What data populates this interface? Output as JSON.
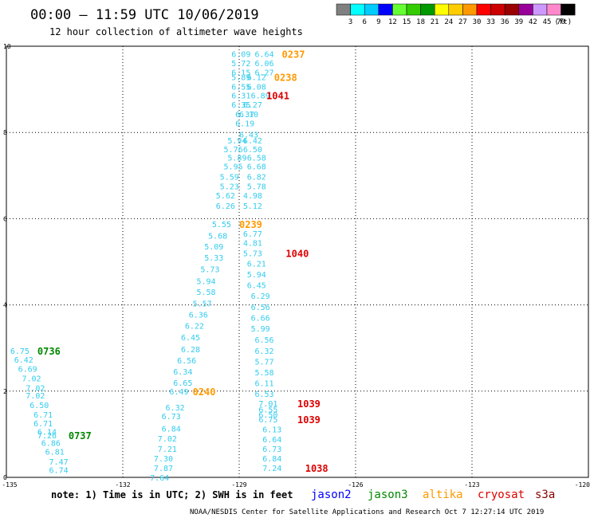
{
  "header": {
    "title": "00:00 – 11:59 UTC 10/06/2019",
    "subtitle": "12 hour collection of altimeter wave heights"
  },
  "color_scale": {
    "labels": [
      "3",
      "6",
      "9",
      "12",
      "15",
      "18",
      "21",
      "24",
      "27",
      "30",
      "33",
      "36",
      "39",
      "42",
      "45",
      "70"
    ],
    "unit": "(ft)",
    "colors": [
      "#808080",
      "#00ffff",
      "#00ccff",
      "#0000ff",
      "#66ff33",
      "#33cc00",
      "#009900",
      "#ffff00",
      "#ffcc00",
      "#ff9900",
      "#ff0000",
      "#cc0000",
      "#990000",
      "#990099",
      "#cc99ff",
      "#ff88cc",
      "#000000"
    ]
  },
  "legend": {
    "satellites": [
      {
        "name": "jason2",
        "color": "#0000ff"
      },
      {
        "name": "jason3",
        "color": "#008800"
      },
      {
        "name": "altika",
        "color": "#ff9900"
      },
      {
        "name": "cryosat",
        "color": "#dd0000"
      },
      {
        "name": "s3a",
        "color": "#880000"
      }
    ]
  },
  "note": "note: 1) Time is in UTC; 2) SWH is in feet",
  "footer": "NOAA/NESDIS Center for Satellite Applications and Research   Oct  7 12:27:14 UTC 2019",
  "chart_data": {
    "type": "scatter",
    "xlim": [
      -135,
      -120
    ],
    "ylim": [
      0,
      10
    ],
    "x_ticks": [
      "-135",
      "-132",
      "-129",
      "-126",
      "-123",
      "-120"
    ],
    "y_ticks": [
      "0",
      "2",
      "4",
      "6",
      "8",
      "10"
    ],
    "grid": true,
    "value_color": "#33ccee",
    "pass_labels": [
      {
        "label": "0237",
        "x": -127.9,
        "y": 9.82,
        "color": "#ff9900"
      },
      {
        "label": "0238",
        "x": -128.1,
        "y": 9.29,
        "color": "#ff9900"
      },
      {
        "label": "1041",
        "x": -128.3,
        "y": 8.86,
        "color": "#dd0000"
      },
      {
        "label": "0239",
        "x": -129.0,
        "y": 5.88,
        "color": "#ff9900"
      },
      {
        "label": "1040",
        "x": -127.8,
        "y": 5.2,
        "color": "#dd0000"
      },
      {
        "label": "0736",
        "x": -134.2,
        "y": 2.94,
        "color": "#008800"
      },
      {
        "label": "0240",
        "x": -130.2,
        "y": 2.0,
        "color": "#ff9900"
      },
      {
        "label": "1039",
        "x": -127.5,
        "y": 1.72,
        "color": "#dd0000"
      },
      {
        "label": "1039",
        "x": -127.5,
        "y": 1.35,
        "color": "#dd0000"
      },
      {
        "label": "0737",
        "x": -133.4,
        "y": 0.98,
        "color": "#008800"
      },
      {
        "label": "1038",
        "x": -127.3,
        "y": 0.22,
        "color": "#dd0000"
      }
    ],
    "points": [
      {
        "v": "6.09",
        "x": -129.2,
        "y": 9.82
      },
      {
        "v": "6.64",
        "x": -128.6,
        "y": 9.82
      },
      {
        "v": "5.72",
        "x": -129.2,
        "y": 9.61
      },
      {
        "v": "6.06",
        "x": -128.6,
        "y": 9.61
      },
      {
        "v": "6.15",
        "x": -129.2,
        "y": 9.4
      },
      {
        "v": "6.27",
        "x": -128.6,
        "y": 9.4
      },
      {
        "v": "5.89",
        "x": -129.2,
        "y": 9.29
      },
      {
        "v": "6.12",
        "x": -128.8,
        "y": 9.29
      },
      {
        "v": "6.55",
        "x": -129.2,
        "y": 9.07
      },
      {
        "v": "6.08",
        "x": -128.8,
        "y": 9.07
      },
      {
        "v": "6.31",
        "x": -129.2,
        "y": 8.86
      },
      {
        "v": "6.89",
        "x": -128.7,
        "y": 8.86
      },
      {
        "v": "6.35",
        "x": -129.2,
        "y": 8.65
      },
      {
        "v": "6.27",
        "x": -128.9,
        "y": 8.65
      },
      {
        "v": "6.37",
        "x": -129.1,
        "y": 8.43
      },
      {
        "v": "6.10",
        "x": -129.0,
        "y": 8.43
      },
      {
        "v": "6.19",
        "x": -129.1,
        "y": 8.22
      },
      {
        "v": "6.43",
        "x": -129.0,
        "y": 7.96
      },
      {
        "v": "5.94",
        "x": -129.3,
        "y": 7.82
      },
      {
        "v": "6.42",
        "x": -128.9,
        "y": 7.82
      },
      {
        "v": "5.76",
        "x": -129.4,
        "y": 7.62
      },
      {
        "v": "6.50",
        "x": -128.9,
        "y": 7.62
      },
      {
        "v": "5.89",
        "x": -129.3,
        "y": 7.42
      },
      {
        "v": "6.58",
        "x": -128.8,
        "y": 7.42
      },
      {
        "v": "5.95",
        "x": -129.4,
        "y": 7.22
      },
      {
        "v": "6.68",
        "x": -128.8,
        "y": 7.22
      },
      {
        "v": "5.59",
        "x": -129.5,
        "y": 6.98
      },
      {
        "v": "6.82",
        "x": -128.8,
        "y": 6.98
      },
      {
        "v": "5.23",
        "x": -129.5,
        "y": 6.76
      },
      {
        "v": "5.78",
        "x": -128.8,
        "y": 6.76
      },
      {
        "v": "5.62",
        "x": -129.6,
        "y": 6.54
      },
      {
        "v": "4.98",
        "x": -128.9,
        "y": 6.54
      },
      {
        "v": "6.26",
        "x": -129.6,
        "y": 6.3
      },
      {
        "v": "5.12",
        "x": -128.9,
        "y": 6.3
      },
      {
        "v": "5.55",
        "x": -129.7,
        "y": 5.88
      },
      {
        "v": "6.77",
        "x": -128.9,
        "y": 5.66
      },
      {
        "v": "5.68",
        "x": -129.8,
        "y": 5.61
      },
      {
        "v": "4.81",
        "x": -128.9,
        "y": 5.44
      },
      {
        "v": "5.09",
        "x": -129.9,
        "y": 5.36
      },
      {
        "v": "5.73",
        "x": -128.9,
        "y": 5.2
      },
      {
        "v": "5.33",
        "x": -129.9,
        "y": 5.1
      },
      {
        "v": "6.21",
        "x": -128.8,
        "y": 4.96
      },
      {
        "v": "5.73",
        "x": -130.0,
        "y": 4.83
      },
      {
        "v": "5.94",
        "x": -128.8,
        "y": 4.71
      },
      {
        "v": "5.94",
        "x": -130.1,
        "y": 4.56
      },
      {
        "v": "6.45",
        "x": -128.8,
        "y": 4.46
      },
      {
        "v": "5.58",
        "x": -130.1,
        "y": 4.31
      },
      {
        "v": "6.29",
        "x": -128.7,
        "y": 4.21
      },
      {
        "v": "5.57",
        "x": -130.2,
        "y": 4.04
      },
      {
        "v": "6.56",
        "x": -128.7,
        "y": 3.96
      },
      {
        "v": "6.36",
        "x": -130.3,
        "y": 3.78
      },
      {
        "v": "6.66",
        "x": -128.7,
        "y": 3.71
      },
      {
        "v": "6.22",
        "x": -130.4,
        "y": 3.52
      },
      {
        "v": "5.99",
        "x": -128.7,
        "y": 3.46
      },
      {
        "v": "6.45",
        "x": -130.5,
        "y": 3.25
      },
      {
        "v": "6.56",
        "x": -128.6,
        "y": 3.2
      },
      {
        "v": "6.28",
        "x": -130.5,
        "y": 2.98
      },
      {
        "v": "6.32",
        "x": -128.6,
        "y": 2.94
      },
      {
        "v": "6.56",
        "x": -130.6,
        "y": 2.72
      },
      {
        "v": "5.77",
        "x": -128.6,
        "y": 2.69
      },
      {
        "v": "6.34",
        "x": -130.7,
        "y": 2.46
      },
      {
        "v": "5.58",
        "x": -128.6,
        "y": 2.44
      },
      {
        "v": "6.65",
        "x": -130.7,
        "y": 2.2
      },
      {
        "v": "6.11",
        "x": -128.6,
        "y": 2.19
      },
      {
        "v": "6.49",
        "x": -130.8,
        "y": 2.0
      },
      {
        "v": "6.53",
        "x": -128.6,
        "y": 1.94
      },
      {
        "v": "7.01",
        "x": -128.5,
        "y": 1.72
      },
      {
        "v": "6.32",
        "x": -130.9,
        "y": 1.63
      },
      {
        "v": "6.55",
        "x": -128.5,
        "y": 1.58
      },
      {
        "v": "6.50",
        "x": -128.5,
        "y": 1.46
      },
      {
        "v": "6.73",
        "x": -131.0,
        "y": 1.42
      },
      {
        "v": "6.75",
        "x": -128.5,
        "y": 1.35
      },
      {
        "v": "6.84",
        "x": -131.0,
        "y": 1.14
      },
      {
        "v": "6.13",
        "x": -128.4,
        "y": 1.12
      },
      {
        "v": "7.02",
        "x": -131.1,
        "y": 0.91
      },
      {
        "v": "6.64",
        "x": -128.4,
        "y": 0.89
      },
      {
        "v": "7.21",
        "x": -131.1,
        "y": 0.67
      },
      {
        "v": "6.73",
        "x": -128.4,
        "y": 0.67
      },
      {
        "v": "7.30",
        "x": -131.2,
        "y": 0.44
      },
      {
        "v": "6.84",
        "x": -128.4,
        "y": 0.44
      },
      {
        "v": "7.87",
        "x": -131.2,
        "y": 0.22
      },
      {
        "v": "7.24",
        "x": -128.4,
        "y": 0.22
      },
      {
        "v": "7.64",
        "x": -131.3,
        "y": 0.0
      },
      {
        "v": "6.75",
        "x": -134.9,
        "y": 2.94
      },
      {
        "v": "6.42",
        "x": -134.8,
        "y": 2.74
      },
      {
        "v": "6.69",
        "x": -134.7,
        "y": 2.52
      },
      {
        "v": "7.02",
        "x": -134.6,
        "y": 2.3
      },
      {
        "v": "7.02",
        "x": -134.5,
        "y": 2.08
      },
      {
        "v": "7.02",
        "x": -134.5,
        "y": 1.9
      },
      {
        "v": "6.50",
        "x": -134.4,
        "y": 1.68
      },
      {
        "v": "6.71",
        "x": -134.3,
        "y": 1.46
      },
      {
        "v": "6.71",
        "x": -134.3,
        "y": 1.26
      },
      {
        "v": "6.14",
        "x": -134.2,
        "y": 1.06
      },
      {
        "v": "7.26",
        "x": -134.2,
        "y": 0.98
      },
      {
        "v": "6.86",
        "x": -134.1,
        "y": 0.8
      },
      {
        "v": "6.81",
        "x": -134.0,
        "y": 0.6
      },
      {
        "v": "7.47",
        "x": -133.9,
        "y": 0.37
      },
      {
        "v": "6.74",
        "x": -133.9,
        "y": 0.18
      }
    ]
  }
}
